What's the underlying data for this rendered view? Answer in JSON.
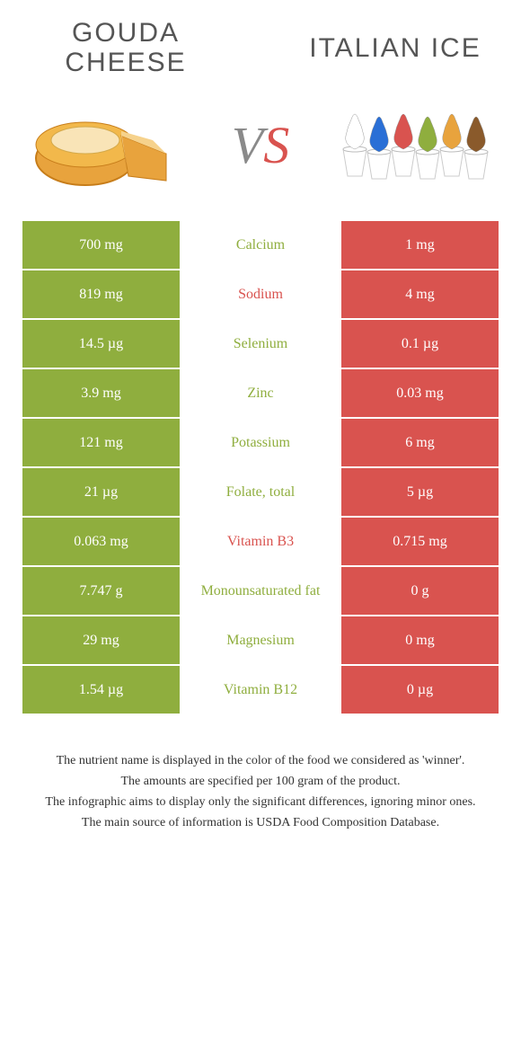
{
  "header": {
    "left_title_line1": "GOUDA",
    "left_title_line2": "CHEESE",
    "right_title": "ITALIAN ICE"
  },
  "vs": {
    "v": "V",
    "s": "S"
  },
  "colors": {
    "left": "#8fae3e",
    "right": "#d9534f",
    "left_text": "#8fae3e",
    "right_text": "#d9534f",
    "bg": "#ffffff"
  },
  "rows": [
    {
      "left": "700 mg",
      "mid": "Calcium",
      "right": "1 mg",
      "winner": "left"
    },
    {
      "left": "819 mg",
      "mid": "Sodium",
      "right": "4 mg",
      "winner": "right"
    },
    {
      "left": "14.5 µg",
      "mid": "Selenium",
      "right": "0.1 µg",
      "winner": "left"
    },
    {
      "left": "3.9 mg",
      "mid": "Zinc",
      "right": "0.03 mg",
      "winner": "left"
    },
    {
      "left": "121 mg",
      "mid": "Potassium",
      "right": "6 mg",
      "winner": "left"
    },
    {
      "left": "21 µg",
      "mid": "Folate, total",
      "right": "5 µg",
      "winner": "left"
    },
    {
      "left": "0.063 mg",
      "mid": "Vitamin B3",
      "right": "0.715 mg",
      "winner": "right"
    },
    {
      "left": "7.747 g",
      "mid": "Monounsaturated fat",
      "right": "0 g",
      "winner": "left"
    },
    {
      "left": "29 mg",
      "mid": "Magnesium",
      "right": "0 mg",
      "winner": "left"
    },
    {
      "left": "1.54 µg",
      "mid": "Vitamin B12",
      "right": "0 µg",
      "winner": "left"
    }
  ],
  "ice_colors": [
    "#ffffff",
    "#2a6fd6",
    "#d9534f",
    "#8fae3e",
    "#e8a33d",
    "#8a5a2b"
  ],
  "footnotes": [
    "The nutrient name is displayed in the color of the food we considered as 'winner'.",
    "The amounts are specified per 100 gram of the product.",
    "The infographic aims to display only the significant differences, ignoring minor ones.",
    "The main source of information is USDA Food Composition Database."
  ]
}
